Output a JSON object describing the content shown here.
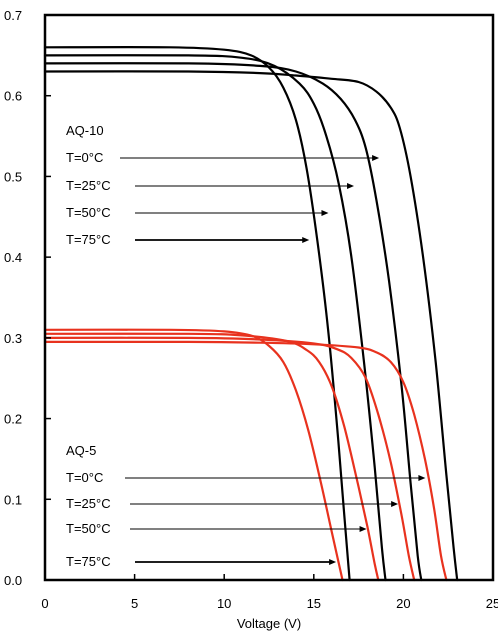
{
  "chart_data": {
    "type": "line",
    "title": "",
    "xlabel": "Voltage (V)",
    "ylabel": "",
    "xlim": [
      0,
      25
    ],
    "ylim": [
      0.0,
      0.7
    ],
    "x_ticks": [
      "0",
      "5",
      "10",
      "15",
      "20",
      "25"
    ],
    "y_ticks": [
      "0.0",
      "0.1",
      "0.2",
      "0.3",
      "0.4",
      "0.5",
      "0.6",
      "0.7"
    ],
    "grid": false,
    "colors": {
      "AQ-10": "#000000",
      "AQ-5": "#e8321e"
    },
    "groups": [
      {
        "name": "AQ-10",
        "labels": [
          "T=0°C",
          "T=25°C",
          "T=50°C",
          "T=75°C"
        ],
        "series": [
          {
            "name": "T=0°C",
            "x": [
              0,
              8,
              12,
              14,
              16,
              17.5,
              18.5,
              19.3,
              19.8,
              20.4,
              21.1,
              21.8,
              22.4,
              22.8,
              23.0
            ],
            "y": [
              0.63,
              0.63,
              0.628,
              0.625,
              0.621,
              0.617,
              0.605,
              0.585,
              0.56,
              0.5,
              0.4,
              0.27,
              0.13,
              0.04,
              0.0
            ]
          },
          {
            "name": "T=25°C",
            "x": [
              0,
              8,
              12,
              14,
              15.5,
              16.5,
              17.3,
              17.9,
              18.5,
              19.2,
              19.9,
              20.4,
              20.8,
              21.0
            ],
            "y": [
              0.64,
              0.64,
              0.637,
              0.63,
              0.615,
              0.596,
              0.57,
              0.535,
              0.47,
              0.37,
              0.24,
              0.12,
              0.03,
              0.0
            ]
          },
          {
            "name": "T=50°C",
            "x": [
              0,
              8,
              11,
              12.8,
              14.2,
              15.0,
              15.7,
              16.4,
              17.1,
              17.8,
              18.4,
              18.8,
              19.0
            ],
            "y": [
              0.65,
              0.65,
              0.647,
              0.637,
              0.615,
              0.59,
              0.55,
              0.49,
              0.4,
              0.27,
              0.14,
              0.04,
              0.0
            ]
          },
          {
            "name": "T=75°C",
            "x": [
              0,
              7,
              10,
              11.5,
              12.5,
              13.3,
              14.0,
              14.6,
              15.2,
              15.8,
              16.3,
              16.7,
              17.0
            ],
            "y": [
              0.66,
              0.66,
              0.657,
              0.65,
              0.635,
              0.61,
              0.57,
              0.51,
              0.42,
              0.31,
              0.19,
              0.08,
              0.0
            ]
          }
        ]
      },
      {
        "name": "AQ-5",
        "labels": [
          "T=0°C",
          "T=25°C",
          "T=50°C",
          "T=75°C"
        ],
        "series": [
          {
            "name": "T=0°C",
            "x": [
              0,
              8,
              12,
              15,
              17.5,
              18.5,
              19.3,
              20.0,
              20.6,
              21.2,
              21.7,
              22.1,
              22.4
            ],
            "y": [
              0.295,
              0.295,
              0.294,
              0.292,
              0.288,
              0.282,
              0.27,
              0.245,
              0.205,
              0.15,
              0.09,
              0.03,
              0.0
            ]
          },
          {
            "name": "T=25°C",
            "x": [
              0,
              8,
              12,
              15,
              16.3,
              17.1,
              17.9,
              18.6,
              19.3,
              19.9,
              20.3,
              20.6
            ],
            "y": [
              0.3,
              0.3,
              0.298,
              0.293,
              0.286,
              0.275,
              0.25,
              0.205,
              0.145,
              0.08,
              0.03,
              0.0
            ]
          },
          {
            "name": "T=50°C",
            "x": [
              0,
              8,
              11,
              13.5,
              14.6,
              15.3,
              16.0,
              16.7,
              17.4,
              18.0,
              18.4,
              18.6
            ],
            "y": [
              0.305,
              0.305,
              0.303,
              0.296,
              0.285,
              0.27,
              0.24,
              0.19,
              0.125,
              0.065,
              0.02,
              0.0
            ]
          },
          {
            "name": "T=75°C",
            "x": [
              0,
              7,
              10,
              11.6,
              12.5,
              13.3,
              14.0,
              14.7,
              15.4,
              16.0,
              16.4,
              16.6
            ],
            "y": [
              0.31,
              0.31,
              0.308,
              0.302,
              0.29,
              0.27,
              0.235,
              0.185,
              0.12,
              0.06,
              0.02,
              0.0
            ]
          }
        ]
      }
    ]
  }
}
